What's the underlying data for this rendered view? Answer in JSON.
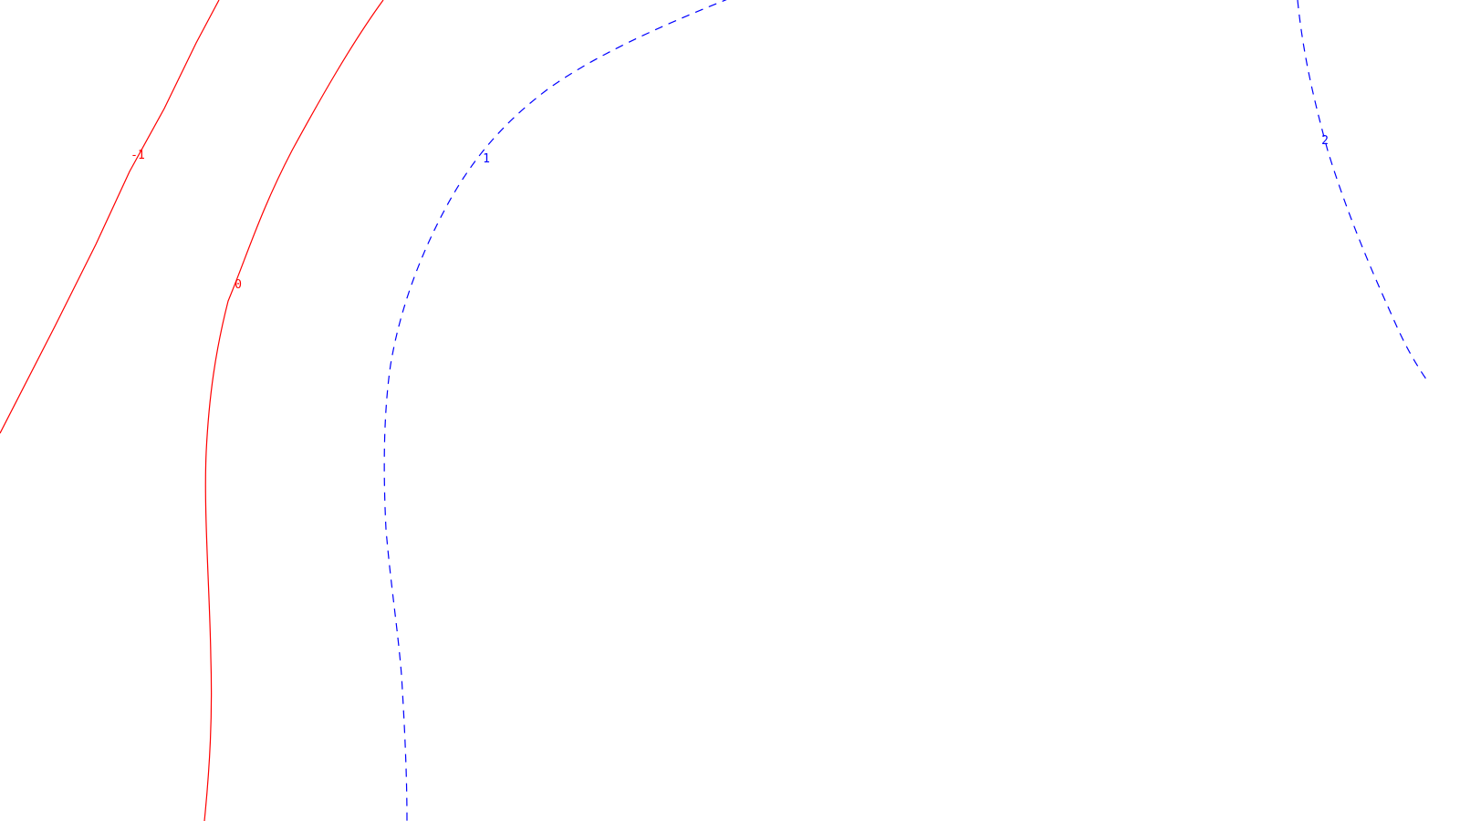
{
  "contours": [
    {
      "id": "minus-one",
      "label": "-1",
      "color": "#ff0000",
      "style": "solid"
    },
    {
      "id": "zero",
      "label": "0",
      "color": "#ff0000",
      "style": "solid"
    },
    {
      "id": "one",
      "label": "1",
      "color": "#0000ff",
      "style": "dashed"
    },
    {
      "id": "two",
      "label": "2",
      "color": "#0000ff",
      "style": "dashed"
    }
  ]
}
